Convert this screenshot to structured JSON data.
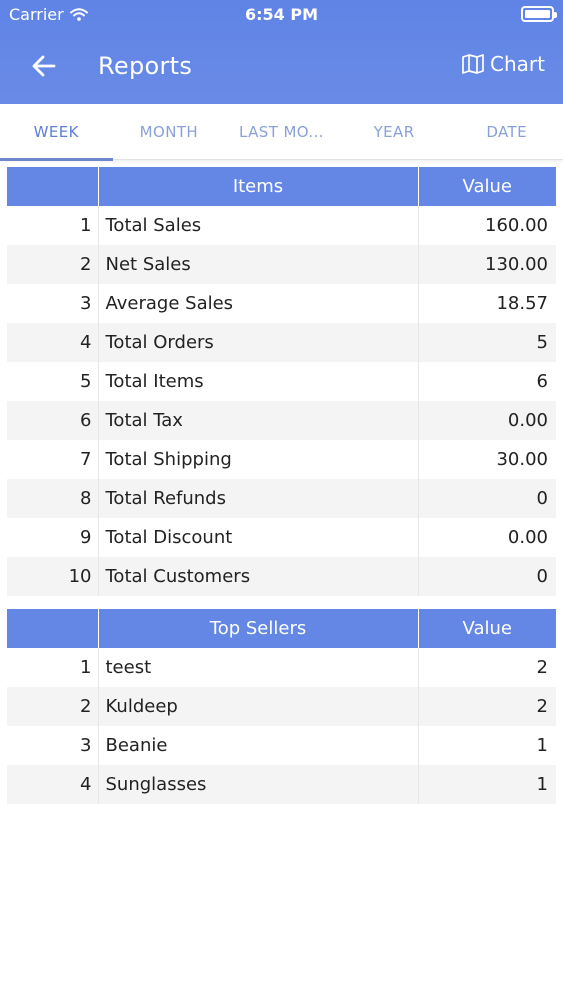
{
  "status_bar": {
    "carrier": "Carrier",
    "time": "6:54 PM"
  },
  "header": {
    "title": "Reports",
    "chart_label": "Chart",
    "back_icon": "arrow-left-icon",
    "chart_icon": "map-icon"
  },
  "tabs": [
    {
      "label": "WEEK",
      "active": true
    },
    {
      "label": "MONTH",
      "active": false
    },
    {
      "label": "LAST MO...",
      "active": false
    },
    {
      "label": "YEAR",
      "active": false
    },
    {
      "label": "DATE",
      "active": false
    }
  ],
  "summary_table": {
    "headers": {
      "items": "Items",
      "value": "Value"
    },
    "rows": [
      {
        "num": "1",
        "item": "Total Sales",
        "value": "160.00"
      },
      {
        "num": "2",
        "item": "Net Sales",
        "value": "130.00"
      },
      {
        "num": "3",
        "item": "Average Sales",
        "value": "18.57"
      },
      {
        "num": "4",
        "item": "Total Orders",
        "value": "5"
      },
      {
        "num": "5",
        "item": "Total Items",
        "value": "6"
      },
      {
        "num": "6",
        "item": "Total Tax",
        "value": "0.00"
      },
      {
        "num": "7",
        "item": "Total Shipping",
        "value": "30.00"
      },
      {
        "num": "8",
        "item": "Total Refunds",
        "value": "0"
      },
      {
        "num": "9",
        "item": "Total Discount",
        "value": "0.00"
      },
      {
        "num": "10",
        "item": "Total Customers",
        "value": "0"
      }
    ]
  },
  "top_sellers_table": {
    "headers": {
      "items": "Top Sellers",
      "value": "Value"
    },
    "rows": [
      {
        "num": "1",
        "item": "teest",
        "value": "2"
      },
      {
        "num": "2",
        "item": "Kuldeep",
        "value": "2"
      },
      {
        "num": "3",
        "item": "Beanie",
        "value": "1"
      },
      {
        "num": "4",
        "item": "Sunglasses",
        "value": "1"
      }
    ]
  },
  "colors": {
    "header_bg": "#6487e6",
    "tab_active": "#5f7fd6",
    "tab_inactive": "#8aa0d8"
  }
}
